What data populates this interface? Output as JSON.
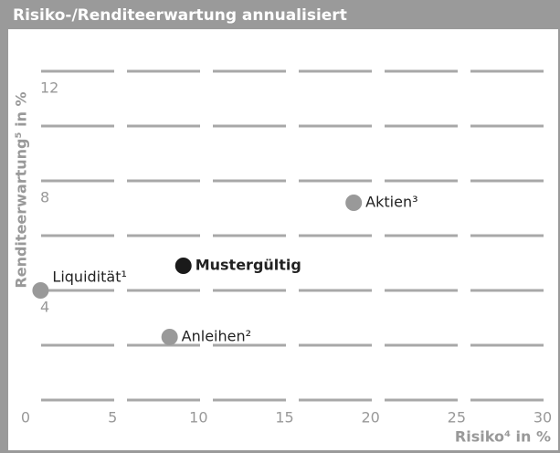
{
  "chart_data": {
    "type": "scatter",
    "title": "Risiko-/Renditeerwartung annualisiert",
    "x_label": "Risiko⁴ in %",
    "y_label": "Renditeerwartung⁵ in %",
    "xlim": [
      0,
      30
    ],
    "xticks": [
      0,
      5,
      10,
      15,
      20,
      25,
      30
    ],
    "ylim": [
      0,
      13.3
    ],
    "yticks": [
      4,
      8,
      12
    ],
    "ygrid": [
      0,
      2,
      4,
      6,
      8,
      10,
      12
    ],
    "grid": true,
    "points": [
      {
        "name": "Liquidität¹",
        "x": 0.5,
        "y": 4.0,
        "color": "#999999"
      },
      {
        "name": "Mustergültig",
        "x": 8.8,
        "y": 4.9,
        "color": "#1a1a1a",
        "bold": true
      },
      {
        "name": "Anleihen²",
        "x": 8.0,
        "y": 2.3,
        "color": "#999999"
      },
      {
        "name": "Aktien³",
        "x": 18.7,
        "y": 7.2,
        "color": "#999999"
      }
    ]
  }
}
